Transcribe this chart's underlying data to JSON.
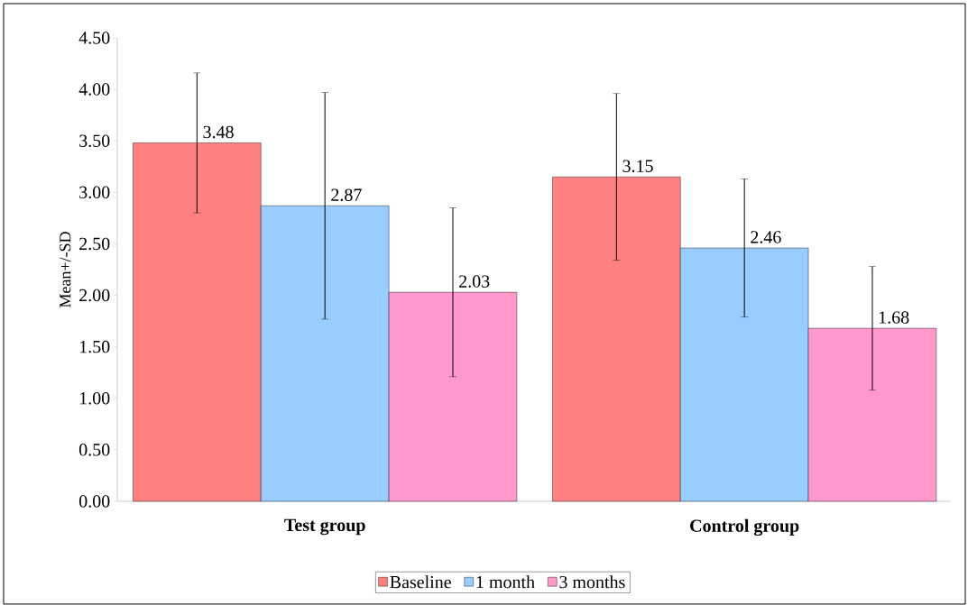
{
  "chart_data": {
    "type": "bar",
    "ylabel": "Mean+/-SD",
    "categories": [
      "Test group",
      "Control group"
    ],
    "series": [
      {
        "name": "Baseline",
        "color": "#ff8080",
        "values": [
          3.48,
          3.15
        ],
        "errors": [
          0.68,
          0.81
        ]
      },
      {
        "name": "1 month",
        "color": "#99ccff",
        "values": [
          2.87,
          2.46
        ],
        "errors": [
          1.1,
          0.67
        ]
      },
      {
        "name": "3 months",
        "color": "#ff99cc",
        "values": [
          2.03,
          1.68
        ],
        "errors": [
          0.82,
          0.6
        ]
      }
    ],
    "ylim": [
      0,
      4.5
    ],
    "yticks": [
      {
        "value": 0,
        "label": "0.00"
      },
      {
        "value": 0.5,
        "label": "0.50"
      },
      {
        "value": 1,
        "label": "1.00"
      },
      {
        "value": 1.5,
        "label": "1.50"
      },
      {
        "value": 2,
        "label": "2.00"
      },
      {
        "value": 2.5,
        "label": "2.50"
      },
      {
        "value": 3,
        "label": "3.00"
      },
      {
        "value": 3.5,
        "label": "3.50"
      },
      {
        "value": 4,
        "label": "4.00"
      },
      {
        "value": 4.5,
        "label": "4.50"
      }
    ],
    "data_labels": true,
    "legend": "bottom",
    "grid": false
  }
}
